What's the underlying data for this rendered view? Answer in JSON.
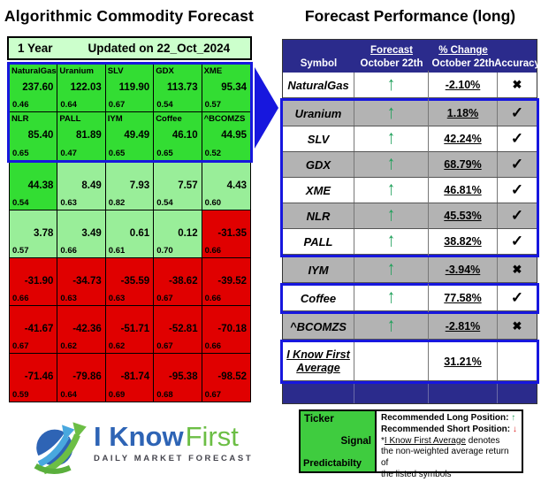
{
  "colors": {
    "accent_blue": "#1717DE",
    "bright_green": "#33DD33",
    "pale_green": "#99EE99",
    "bar_green": "#CCFFCC",
    "red": "#E00000",
    "navy": "#2B2B8C",
    "row_gray": "#B3B3B3",
    "arrow_green": "#1FA05A",
    "arrow_red": "#DD2222",
    "legend_green": "#3FCC3F",
    "logo_blue": "#2E64B5",
    "logo_green": "#6CBE45"
  },
  "left_panel": {
    "title": "Algorithmic Commodity Forecast",
    "period_label": "1 Year",
    "updated_label": "Updated on 22_Oct_2024"
  },
  "right_panel": {
    "title": "Forecast Performance (long)",
    "header": {
      "symbol": "Symbol",
      "forecast_label": "Forecast",
      "forecast_date": "October 22th",
      "change_label": "% Change",
      "change_date": "October 22th",
      "accuracy": "Accuracy"
    },
    "glyphs": {
      "up_arrow": "↑",
      "hit": "✓",
      "miss": "✖"
    }
  },
  "legend": {
    "ticker_label": "Ticker",
    "signal_label": "Signal",
    "predictability_label": "Predictabilty",
    "long_line": "Recommended Long Position:",
    "short_line": "Recommended Short Position:",
    "long_arrow": "↑",
    "short_arrow": "↓",
    "note_prefix": "*",
    "note_underlined": "I Know First Average",
    "note_suffix": " denotes",
    "note_line2": "the non-weighted average return of",
    "note_line3": "the listed symbols"
  },
  "logo": {
    "part1": "I Know",
    "part2": "First",
    "tagline": "DAILY MARKET FORECAST"
  },
  "chart_data": [
    {
      "type": "heatmap",
      "title": "Algorithmic Commodity Forecast",
      "subtitle": "1 Year — Updated on 22_Oct_2024",
      "value_semantics": "each cell: ticker (top), signal strength (middle), predictability (bottom); green=long signal, red=short signal",
      "rows": [
        {
          "cells": [
            {
              "ticker": "NaturalGas",
              "signal": "237.60",
              "predictability": "0.46",
              "tone": "bright"
            },
            {
              "ticker": "Uranium",
              "signal": "122.03",
              "predictability": "0.64",
              "tone": "bright"
            },
            {
              "ticker": "SLV",
              "signal": "119.90",
              "predictability": "0.67",
              "tone": "bright"
            },
            {
              "ticker": "GDX",
              "signal": "113.73",
              "predictability": "0.54",
              "tone": "bright"
            },
            {
              "ticker": "XME",
              "signal": "95.34",
              "predictability": "0.57",
              "tone": "bright"
            }
          ]
        },
        {
          "cells": [
            {
              "ticker": "NLR",
              "signal": "85.40",
              "predictability": "0.65",
              "tone": "bright"
            },
            {
              "ticker": "PALL",
              "signal": "81.89",
              "predictability": "0.47",
              "tone": "bright"
            },
            {
              "ticker": "IYM",
              "signal": "49.49",
              "predictability": "0.65",
              "tone": "bright"
            },
            {
              "ticker": "Coffee",
              "signal": "46.10",
              "predictability": "0.65",
              "tone": "bright"
            },
            {
              "ticker": "^BCOMZS",
              "signal": "44.95",
              "predictability": "0.52",
              "tone": "bright"
            }
          ]
        },
        {
          "cells": [
            {
              "signal": "44.38",
              "predictability": "0.54",
              "tone": "bright"
            },
            {
              "signal": "8.49",
              "predictability": "0.63",
              "tone": "pale"
            },
            {
              "signal": "7.93",
              "predictability": "0.82",
              "tone": "pale"
            },
            {
              "signal": "7.57",
              "predictability": "0.54",
              "tone": "pale"
            },
            {
              "signal": "4.43",
              "predictability": "0.60",
              "tone": "pale"
            }
          ]
        },
        {
          "cells": [
            {
              "signal": "3.78",
              "predictability": "0.57",
              "tone": "pale"
            },
            {
              "signal": "3.49",
              "predictability": "0.66",
              "tone": "pale"
            },
            {
              "signal": "0.61",
              "predictability": "0.61",
              "tone": "pale"
            },
            {
              "signal": "0.12",
              "predictability": "0.70",
              "tone": "pale"
            },
            {
              "signal": "-31.35",
              "predictability": "0.66",
              "tone": "red"
            }
          ]
        },
        {
          "cells": [
            {
              "signal": "-31.90",
              "predictability": "0.66",
              "tone": "red"
            },
            {
              "signal": "-34.73",
              "predictability": "0.63",
              "tone": "red"
            },
            {
              "signal": "-35.59",
              "predictability": "0.63",
              "tone": "red"
            },
            {
              "signal": "-38.62",
              "predictability": "0.67",
              "tone": "red"
            },
            {
              "signal": "-39.52",
              "predictability": "0.66",
              "tone": "red"
            }
          ]
        },
        {
          "cells": [
            {
              "signal": "-41.67",
              "predictability": "0.67",
              "tone": "red"
            },
            {
              "signal": "-42.36",
              "predictability": "0.62",
              "tone": "red"
            },
            {
              "signal": "-51.71",
              "predictability": "0.62",
              "tone": "red"
            },
            {
              "signal": "-52.81",
              "predictability": "0.67",
              "tone": "red"
            },
            {
              "signal": "-70.18",
              "predictability": "0.66",
              "tone": "red"
            }
          ]
        },
        {
          "cells": [
            {
              "signal": "-71.46",
              "predictability": "0.59",
              "tone": "red"
            },
            {
              "signal": "-79.86",
              "predictability": "0.64",
              "tone": "red"
            },
            {
              "signal": "-81.74",
              "predictability": "0.69",
              "tone": "red"
            },
            {
              "signal": "-95.38",
              "predictability": "0.68",
              "tone": "red"
            },
            {
              "signal": "-98.52",
              "predictability": "0.67",
              "tone": "red"
            }
          ]
        }
      ]
    },
    {
      "type": "table",
      "title": "Forecast Performance (long)",
      "columns": [
        "Symbol",
        "Forecast October 22th",
        "% Change October 22th",
        "Accuracy"
      ],
      "rows": [
        {
          "symbol": "NaturalGas",
          "forecast": "up",
          "change": "-2.10%",
          "accuracy": "incorrect",
          "shade": "white",
          "box": null
        },
        {
          "symbol": "Uranium",
          "forecast": "up",
          "change": "1.18%",
          "accuracy": "correct",
          "shade": "gray",
          "box": "main"
        },
        {
          "symbol": "SLV",
          "forecast": "up",
          "change": "42.24%",
          "accuracy": "correct",
          "shade": "white",
          "box": "main"
        },
        {
          "symbol": "GDX",
          "forecast": "up",
          "change": "68.79%",
          "accuracy": "correct",
          "shade": "gray",
          "box": "main"
        },
        {
          "symbol": "XME",
          "forecast": "up",
          "change": "46.81%",
          "accuracy": "correct",
          "shade": "white",
          "box": "main"
        },
        {
          "symbol": "NLR",
          "forecast": "up",
          "change": "45.53%",
          "accuracy": "correct",
          "shade": "gray",
          "box": "main"
        },
        {
          "symbol": "PALL",
          "forecast": "up",
          "change": "38.82%",
          "accuracy": "correct",
          "shade": "white",
          "box": "main"
        },
        {
          "symbol": "IYM",
          "forecast": "up",
          "change": "-3.94%",
          "accuracy": "incorrect",
          "shade": "gray",
          "box": null
        },
        {
          "symbol": "Coffee",
          "forecast": "up",
          "change": "77.58%",
          "accuracy": "correct",
          "shade": "white",
          "box": "coffee"
        },
        {
          "symbol": "^BCOMZS",
          "forecast": "up",
          "change": "-2.81%",
          "accuracy": "incorrect",
          "shade": "gray",
          "box": null
        }
      ],
      "average_row": {
        "label_line1": "I Know First",
        "label_line2": "Average",
        "change": "31.21%"
      }
    }
  ]
}
